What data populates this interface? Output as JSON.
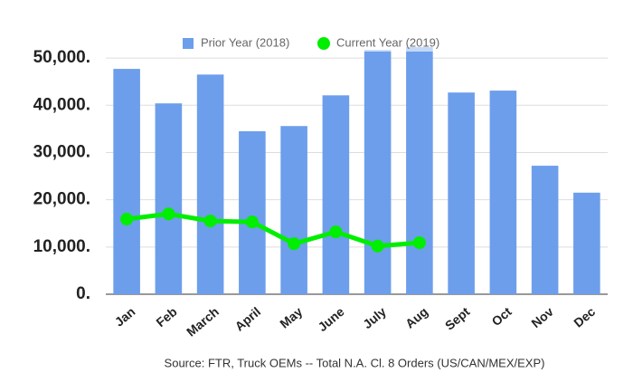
{
  "chart_data": {
    "type": "bar",
    "categories": [
      "Jan",
      "Feb",
      "March",
      "April",
      "May",
      "June",
      "July",
      "Aug",
      "Sept",
      "Oct",
      "Nov",
      "Dec"
    ],
    "series": [
      {
        "name": "Prior Year (2018)",
        "type": "bar",
        "color": "#6d9eeb",
        "values": [
          47700,
          40400,
          46500,
          34500,
          35600,
          42100,
          51700,
          52300,
          42700,
          43100,
          27200,
          21500
        ]
      },
      {
        "name": "Current Year (2019)",
        "type": "line",
        "color": "#00ee00",
        "values": [
          15900,
          17000,
          15500,
          15300,
          10700,
          13200,
          10200,
          10900,
          null,
          null,
          null,
          null
        ]
      }
    ],
    "ylim": [
      0,
      55000
    ],
    "yticks": [
      {
        "value": 0,
        "label": "0."
      },
      {
        "value": 10000,
        "label": "10,000."
      },
      {
        "value": 20000,
        "label": "20,000."
      },
      {
        "value": 30000,
        "label": "30,000."
      },
      {
        "value": 40000,
        "label": "40,000."
      },
      {
        "value": 50000,
        "label": "50,000."
      }
    ],
    "grid": true,
    "legend": "top",
    "note": "Source: FTR, Truck OEMs -- Total N.A. Cl. 8 Orders (US/CAN/MEX/EXP)"
  }
}
